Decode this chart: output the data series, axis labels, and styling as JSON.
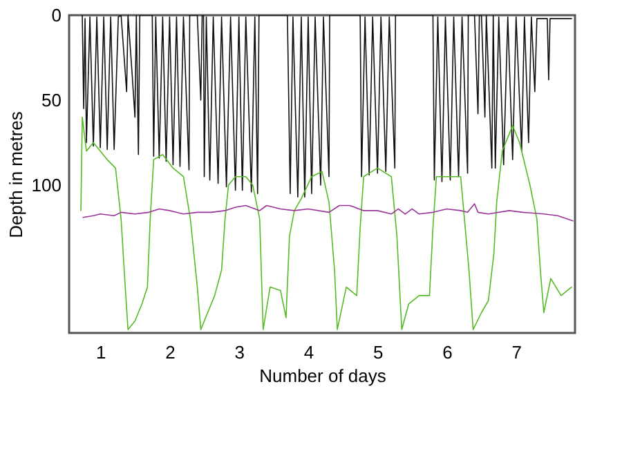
{
  "chart_data": {
    "type": "line",
    "xlabel": "Number of days",
    "ylabel": "Depth in metres",
    "xlim": [
      0.55,
      7.85
    ],
    "xticks": [
      1,
      2,
      3,
      4,
      5,
      6,
      7
    ],
    "ylim": [
      187,
      0
    ],
    "yticks": [
      0,
      50,
      100
    ],
    "grid": false,
    "marker": "none",
    "line_style": "solid",
    "series": [
      {
        "color": "#111111",
        "x": [
          0.74,
          0.76,
          0.78,
          0.8,
          0.85,
          0.9,
          0.95,
          1.0,
          1.05,
          1.1,
          1.15,
          1.2,
          1.26,
          1.3,
          1.38,
          1.4,
          1.46,
          1.5,
          1.52,
          1.55,
          1.57,
          1.7,
          1.75,
          1.77,
          1.8,
          1.85,
          1.9,
          1.95,
          2.0,
          2.05,
          2.1,
          2.15,
          2.2,
          2.28,
          2.29,
          2.4,
          2.45,
          2.47,
          2.49,
          2.5,
          2.53,
          2.58,
          2.63,
          2.7,
          2.75,
          2.82,
          2.88,
          2.95,
          3.0,
          3.05,
          3.1,
          3.18,
          3.23,
          3.27,
          3.29,
          3.5,
          3.7,
          3.74,
          3.78,
          3.85,
          3.9,
          3.95,
          4.0,
          4.05,
          4.1,
          4.18,
          4.22,
          4.3,
          4.31,
          4.5,
          4.75,
          4.77,
          4.82,
          4.88,
          4.93,
          5.0,
          5.05,
          5.12,
          5.17,
          5.25,
          5.26,
          5.5,
          5.8,
          5.82,
          5.87,
          5.93,
          5.98,
          6.05,
          6.1,
          6.17,
          6.22,
          6.3,
          6.31,
          6.4,
          6.45,
          6.47,
          6.5,
          6.55,
          6.57,
          6.65,
          6.67,
          6.7,
          6.75,
          6.82,
          6.88,
          6.95,
          7.0,
          7.08,
          7.12,
          7.18,
          7.22,
          7.27,
          7.3,
          7.45,
          7.47,
          7.49,
          7.8
        ],
        "values": [
          0,
          55,
          2,
          75,
          1,
          77,
          1,
          78,
          1,
          79,
          1,
          79,
          1,
          0,
          45,
          0,
          35,
          60,
          0,
          82,
          0,
          0,
          0,
          83,
          1,
          84,
          1,
          86,
          1,
          88,
          1,
          89,
          1,
          91,
          0,
          0,
          50,
          0,
          0,
          95,
          1,
          97,
          1,
          99,
          1,
          101,
          1,
          103,
          1,
          103,
          1,
          104,
          1,
          105,
          0,
          0,
          0,
          105,
          1,
          107,
          1,
          107,
          1,
          105,
          1,
          100,
          1,
          95,
          0,
          0,
          0,
          95,
          1,
          94,
          1,
          93,
          1,
          92,
          1,
          90,
          0,
          0,
          0,
          97,
          1,
          98,
          1,
          97,
          1,
          95,
          1,
          93,
          0,
          0,
          58,
          0,
          0,
          60,
          0,
          90,
          0,
          90,
          1,
          88,
          1,
          85,
          1,
          80,
          1,
          75,
          1,
          45,
          2,
          2,
          38,
          2,
          2
        ]
      },
      {
        "color": "#55bb22",
        "x": [
          0.72,
          0.74,
          0.8,
          0.9,
          1.0,
          1.1,
          1.22,
          1.3,
          1.36,
          1.4,
          1.5,
          1.6,
          1.68,
          1.72,
          1.77,
          1.9,
          2.05,
          2.2,
          2.3,
          2.4,
          2.45,
          2.55,
          2.65,
          2.75,
          2.8,
          2.85,
          2.95,
          3.1,
          3.2,
          3.3,
          3.35,
          3.45,
          3.6,
          3.68,
          3.73,
          3.8,
          3.9,
          4.05,
          4.2,
          4.3,
          4.38,
          4.42,
          4.55,
          4.7,
          4.75,
          4.8,
          5.0,
          5.2,
          5.28,
          5.35,
          5.45,
          5.6,
          5.75,
          5.8,
          5.85,
          6.0,
          6.2,
          6.32,
          6.38,
          6.5,
          6.6,
          6.68,
          6.72,
          6.8,
          6.95,
          7.05,
          7.2,
          7.3,
          7.35,
          7.4,
          7.5,
          7.65,
          7.8
        ],
        "values": [
          115,
          60,
          80,
          75,
          80,
          85,
          90,
          120,
          160,
          185,
          180,
          170,
          160,
          120,
          85,
          82,
          90,
          95,
          120,
          160,
          185,
          175,
          165,
          150,
          120,
          100,
          95,
          95,
          100,
          120,
          185,
          160,
          162,
          178,
          130,
          115,
          108,
          95,
          92,
          110,
          150,
          185,
          160,
          165,
          125,
          95,
          90,
          95,
          130,
          185,
          170,
          165,
          165,
          125,
          95,
          95,
          95,
          150,
          185,
          175,
          168,
          140,
          110,
          80,
          65,
          75,
          100,
          120,
          150,
          175,
          155,
          165,
          160
        ]
      },
      {
        "color": "#993399",
        "x": [
          0.75,
          0.9,
          1.0,
          1.2,
          1.3,
          1.5,
          1.7,
          1.85,
          2.0,
          2.2,
          2.4,
          2.6,
          2.8,
          2.95,
          3.1,
          3.3,
          3.4,
          3.6,
          3.8,
          4.0,
          4.3,
          4.45,
          4.6,
          4.8,
          5.0,
          5.2,
          5.3,
          5.4,
          5.5,
          5.6,
          5.8,
          6.0,
          6.2,
          6.3,
          6.4,
          6.45,
          6.6,
          6.9,
          7.1,
          7.4,
          7.6,
          7.82
        ],
        "values": [
          119,
          118,
          117,
          118,
          116,
          117,
          116,
          114,
          115,
          117,
          116,
          116,
          115,
          113,
          112,
          115,
          112,
          114,
          115,
          114,
          116,
          112,
          112,
          115,
          115,
          117,
          114,
          117,
          114,
          117,
          116,
          114,
          115,
          116,
          111,
          116,
          117,
          115,
          116,
          117,
          118,
          121
        ]
      }
    ]
  }
}
